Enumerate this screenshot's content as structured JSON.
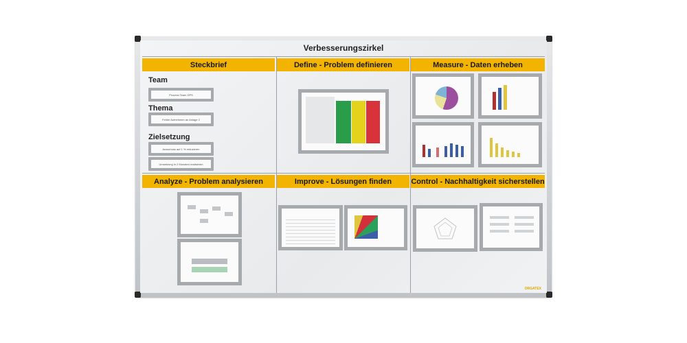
{
  "board": {
    "title": "Verbesserungszirkel",
    "brand": "ORGATEX",
    "colors": {
      "header": "#f2b400",
      "frame": "#c8cbce",
      "pocket": "#a7aaad"
    },
    "columns_top": [
      "Steckbrief",
      "Define - Problem definieren",
      "Measure - Daten erheben"
    ],
    "columns_bottom": [
      "Analyze - Problem analysieren",
      "Improve - Lösungen finden",
      "Control - Nachhaltigkeit sicherstellen"
    ],
    "steckbrief": {
      "team_label": "Team",
      "team_value": "Process Team DPS",
      "thema_label": "Thema",
      "thema_value": "Fehler Aufnehmen an Anlage 2",
      "ziel_label": "Zielsetzung",
      "ziel_values": [
        "Ausschuss auf 1 % reduzieren",
        "Umsetzung in 2 Monaten realisieren"
      ]
    }
  }
}
